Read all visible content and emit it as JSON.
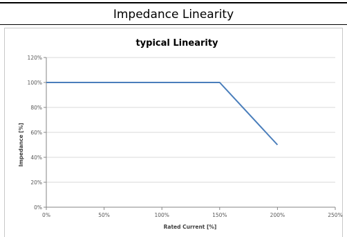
{
  "header": {
    "title": "Impedance Linearity"
  },
  "chart_data": {
    "type": "line",
    "title": "typical Linearity",
    "xlabel": "Rated Current [%]",
    "ylabel": "Impedance [%]",
    "xlim": [
      0,
      250
    ],
    "ylim": [
      0,
      120
    ],
    "x_ticks": [
      0,
      50,
      100,
      150,
      200,
      250
    ],
    "x_tick_labels": [
      "0%",
      "50%",
      "100%",
      "150%",
      "200%",
      "250%"
    ],
    "y_ticks": [
      0,
      20,
      40,
      60,
      80,
      100,
      120
    ],
    "y_tick_labels": [
      "0%",
      "20%",
      "40%",
      "60%",
      "80%",
      "100%",
      "120%"
    ],
    "grid": true,
    "legend": "none",
    "series": [
      {
        "x": [
          0,
          150,
          200
        ],
        "values": [
          100,
          100,
          50
        ],
        "color": "#4a7ebb"
      }
    ],
    "colors": {
      "gridline": "#d9d9d9",
      "axis": "#868686"
    }
  }
}
